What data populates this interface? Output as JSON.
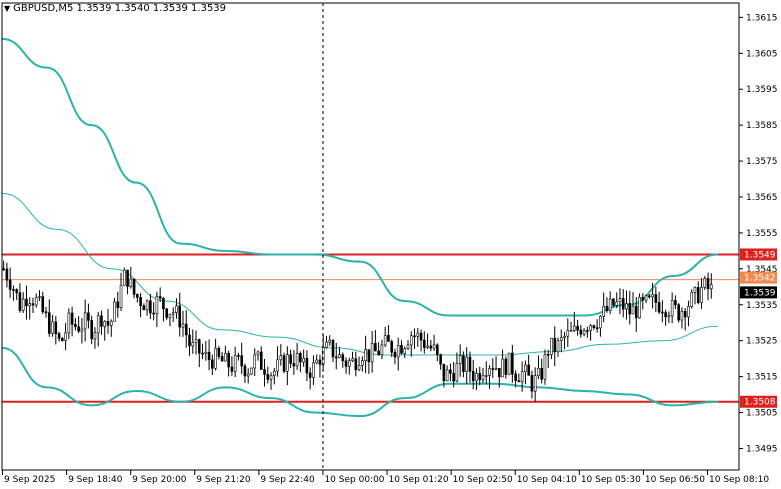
{
  "header": {
    "symbol": "GBPUSD,M5",
    "ohlc": "1.3539 1.3540 1.3539 1.3539"
  },
  "chart_data": {
    "type": "candlestick",
    "symbol": "GBPUSD",
    "timeframe": "M5",
    "ylim": [
      1.3489,
      1.3619
    ],
    "y_ticks": [
      "1.3615",
      "1.3605",
      "1.3595",
      "1.3585",
      "1.3575",
      "1.3565",
      "1.3555",
      "1.3545",
      "1.3535",
      "1.3525",
      "1.3515",
      "1.3505",
      "1.3495"
    ],
    "x_ticks": [
      "9 Sep 2025",
      "9 Sep 18:40",
      "9 Sep 20:00",
      "9 Sep 21:20",
      "9 Sep 22:40",
      "10 Sep 00:00",
      "10 Sep 01:20",
      "10 Sep 02:50",
      "10 Sep 04:10",
      "10 Sep 05:30",
      "10 Sep 06:50",
      "10 Sep 08:10"
    ],
    "bars_shown": 226,
    "close": [
      1.3545,
      1.3541,
      1.3535,
      1.3538,
      1.3536,
      1.3532,
      1.3528,
      1.3524,
      1.353,
      1.3529,
      1.353,
      1.3528,
      1.3532,
      1.3529,
      1.3536,
      1.3544,
      1.3538,
      1.3536,
      1.3535,
      1.3536,
      1.3534,
      1.3533,
      1.353,
      1.3523,
      1.3522,
      1.352,
      1.352,
      1.3519,
      1.3518,
      1.3519,
      1.3517,
      1.352,
      1.3518,
      1.3516,
      1.3518,
      1.352,
      1.352,
      1.3517,
      1.3517,
      1.3521,
      1.3523,
      1.3521,
      1.3519,
      1.3519,
      1.3522,
      1.3521,
      1.3522,
      1.3524,
      1.3523,
      1.3524,
      1.3527,
      1.3526,
      1.3524,
      1.3522,
      1.3515,
      1.3516,
      1.3518,
      1.3518,
      1.3515,
      1.3518,
      1.3519,
      1.3517,
      1.3519,
      1.3516,
      1.3516,
      1.3513,
      1.3515,
      1.3523,
      1.3523,
      1.3526,
      1.3527,
      1.3529,
      1.353,
      1.3531,
      1.3533,
      1.3535,
      1.3535,
      1.3533,
      1.3534,
      1.3535,
      1.3536,
      1.3535,
      1.3534,
      1.3533,
      1.3535,
      1.3537,
      1.354,
      1.3539
    ],
    "bands": {
      "upper_outer": [
        1.3609,
        1.3601,
        1.3585,
        1.3569,
        1.3552,
        1.355,
        1.3549,
        1.3549,
        1.3547,
        1.3536,
        1.3532,
        1.3532,
        1.3532,
        1.3532,
        1.3535,
        1.3543,
        1.3549
      ],
      "lower_outer": [
        1.3523,
        1.3512,
        1.3507,
        1.3511,
        1.3508,
        1.3512,
        1.3509,
        1.3505,
        1.3504,
        1.3509,
        1.3513,
        1.3513,
        1.3512,
        1.3511,
        1.351,
        1.3507,
        1.3508
      ],
      "middle": [
        1.3566,
        1.3556,
        1.3545,
        1.3536,
        1.3528,
        1.3526,
        1.3523,
        1.3521,
        1.3521,
        1.3521,
        1.3522,
        1.3524,
        1.3525,
        1.3529
      ]
    },
    "levels": [
      {
        "value": "1.3549",
        "color": "#e0201c"
      },
      {
        "value": "1.3542",
        "color": "#f08a50"
      },
      {
        "value": "1.3539",
        "color": "#000000"
      },
      {
        "value": "1.3508",
        "color": "#e0201c"
      }
    ],
    "colors": {
      "band_outer": "#2ab3ad",
      "band_middle": "#2ab3ad",
      "candles": "#000000",
      "level_line": "#e0201c",
      "ask_line": "#f08a50"
    },
    "grid": false,
    "vertical_marker": "10 Sep 00:00"
  }
}
